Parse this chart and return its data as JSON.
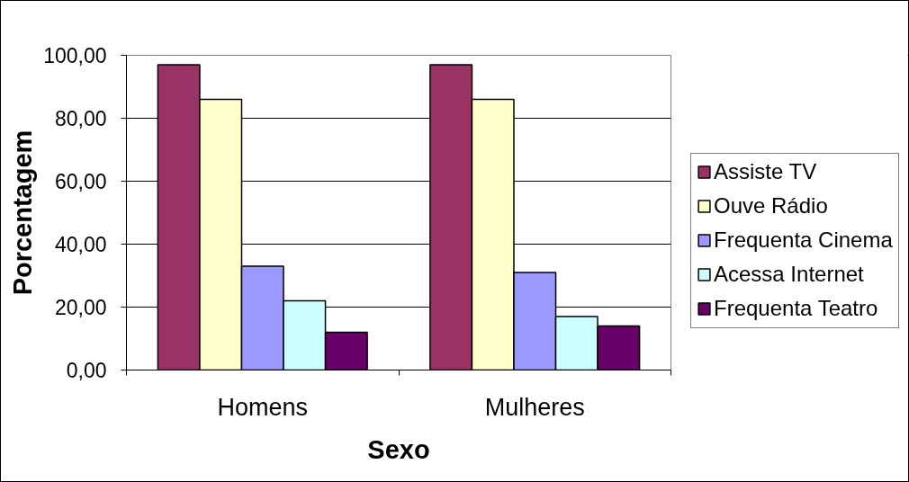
{
  "chart_data": {
    "type": "bar",
    "xlabel": "Sexo",
    "ylabel": "Porcentagem",
    "categories": [
      "Homens",
      "Mulheres"
    ],
    "series": [
      {
        "name": "Assiste TV",
        "color": "#993366",
        "values": [
          97,
          97
        ]
      },
      {
        "name": "Ouve Rádio",
        "color": "#ffffcc",
        "values": [
          86,
          86
        ]
      },
      {
        "name": "Frequenta Cinema",
        "color": "#9999ff",
        "values": [
          33,
          31
        ]
      },
      {
        "name": "Acessa Internet",
        "color": "#ccffff",
        "values": [
          22,
          17
        ]
      },
      {
        "name": "Frequenta Teatro",
        "color": "#660066",
        "values": [
          12,
          14
        ]
      }
    ],
    "ylim": [
      0,
      100
    ],
    "yticks": [
      {
        "value": 0,
        "label": "0,00"
      },
      {
        "value": 20,
        "label": "20,00"
      },
      {
        "value": 40,
        "label": "40,00"
      },
      {
        "value": 60,
        "label": "60,00"
      },
      {
        "value": 80,
        "label": "80,00"
      },
      {
        "value": 100,
        "label": "100,00"
      }
    ],
    "grid": "y",
    "legend": "right"
  }
}
